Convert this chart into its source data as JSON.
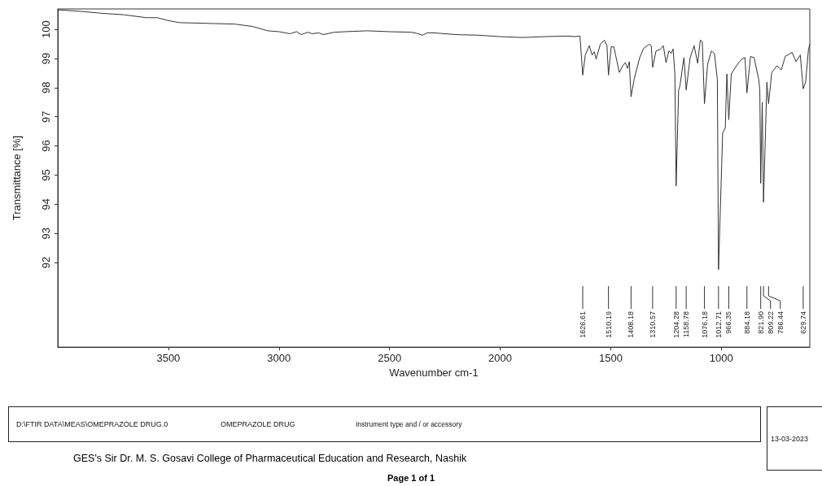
{
  "chart_data": {
    "type": "line",
    "xlabel": "Wavenumber cm-1",
    "ylabel": "Transmittance [%]",
    "xlim": [
      4000,
      600
    ],
    "xticks": [
      3500,
      3000,
      2500,
      2000,
      1500,
      1000
    ],
    "ylim": [
      89.1,
      100.7
    ],
    "yticks": [
      92,
      93,
      94,
      95,
      96,
      97,
      98,
      99,
      100
    ],
    "grid": false,
    "marker": "none",
    "line_style": "solid",
    "series": [
      {
        "color": "#333333",
        "x": [
          4000,
          3900,
          3800,
          3700,
          3600,
          3550,
          3500,
          3450,
          3300,
          3200,
          3120,
          3050,
          3000,
          2950,
          2920,
          2900,
          2870,
          2850,
          2820,
          2800,
          2750,
          2700,
          2600,
          2500,
          2400,
          2370,
          2350,
          2330,
          2300,
          2200,
          2100,
          2000,
          1900,
          1800,
          1700,
          1660,
          1639,
          1626.61,
          1615,
          1597,
          1584,
          1574,
          1566,
          1547,
          1529,
          1517,
          1510.19,
          1498,
          1486,
          1461,
          1446,
          1434,
          1424,
          1416,
          1408.18,
          1394,
          1369,
          1351,
          1326,
          1317,
          1310.57,
          1295,
          1277,
          1262,
          1250,
          1237,
          1227,
          1218,
          1210,
          1204.28,
          1193,
          1187,
          1178,
          1169,
          1158.78,
          1141,
          1123,
          1107,
          1095,
          1086,
          1076.18,
          1062,
          1045,
          1031,
          1018,
          1012.71,
          994,
          982,
          975,
          966.35,
          955,
          932,
          908,
          893,
          884.18,
          868,
          852,
          831,
          826,
          821.9,
          815,
          809.22,
          794,
          786.44,
          772,
          748,
          729,
          711,
          680,
          662,
          643,
          629.74,
          619,
          606,
          600
        ],
        "values": [
          100.67,
          100.62,
          100.55,
          100.5,
          100.4,
          100.4,
          100.3,
          100.23,
          100.2,
          100.18,
          100.1,
          99.95,
          99.92,
          99.85,
          99.92,
          99.82,
          99.9,
          99.85,
          99.88,
          99.82,
          99.9,
          99.92,
          99.95,
          99.92,
          99.9,
          99.85,
          99.8,
          99.88,
          99.88,
          99.82,
          99.8,
          99.75,
          99.72,
          99.75,
          99.77,
          99.75,
          99.77,
          98.43,
          99.12,
          99.44,
          99.12,
          99.23,
          98.98,
          99.49,
          99.63,
          99.44,
          98.43,
          99.4,
          99.4,
          98.52,
          98.75,
          98.86,
          98.66,
          98.89,
          97.69,
          98.29,
          99.03,
          99.35,
          99.49,
          99.44,
          98.7,
          99.26,
          99.31,
          99.44,
          98.86,
          99.26,
          99.17,
          99.33,
          98.47,
          94.63,
          97.92,
          98.06,
          98.56,
          99.03,
          97.92,
          99.03,
          99.44,
          98.84,
          99.63,
          99.58,
          97.45,
          98.8,
          99.26,
          99.17,
          98.29,
          91.76,
          96.44,
          96.62,
          98.47,
          96.9,
          98.47,
          98.75,
          98.98,
          99.03,
          97.82,
          99.07,
          99.03,
          98.29,
          97.92,
          94.72,
          97.5,
          94.07,
          98.19,
          97.45,
          98.52,
          98.75,
          98.61,
          99.07,
          99.21,
          98.89,
          99.12,
          97.96,
          98.19,
          99.31,
          99.49
        ]
      }
    ],
    "annotations": [
      {
        "text": "1626.61",
        "x": 1626.61
      },
      {
        "text": "1510.19",
        "x": 1510.19
      },
      {
        "text": "1408.18",
        "x": 1408.18
      },
      {
        "text": "1310.57",
        "x": 1310.57
      },
      {
        "text": "1204.28",
        "x": 1204.28
      },
      {
        "text": "1158.78",
        "x": 1158.78
      },
      {
        "text": "1076.18",
        "x": 1076.18
      },
      {
        "text": "1012.71",
        "x": 1012.71
      },
      {
        "text": "966.35",
        "x": 966.35
      },
      {
        "text": "884.18",
        "x": 884.18
      },
      {
        "text": "821.90",
        "x": 821.9
      },
      {
        "text": "809.22",
        "x": 809.22
      },
      {
        "text": "786.44",
        "x": 786.44
      },
      {
        "text": "629.74",
        "x": 629.74
      },
      "D:\\FTIR DATA\\MEAS\\OMEPRAZOLE DRUG.0",
      "OMEPRAZOLE DRUG",
      "Instrument type and / or accessory",
      "13-03-2023",
      "GES's Sir Dr. M. S. Gosavi College of Pharmaceutical Education and Research, Nashik",
      "Page 1 of 1"
    ]
  }
}
